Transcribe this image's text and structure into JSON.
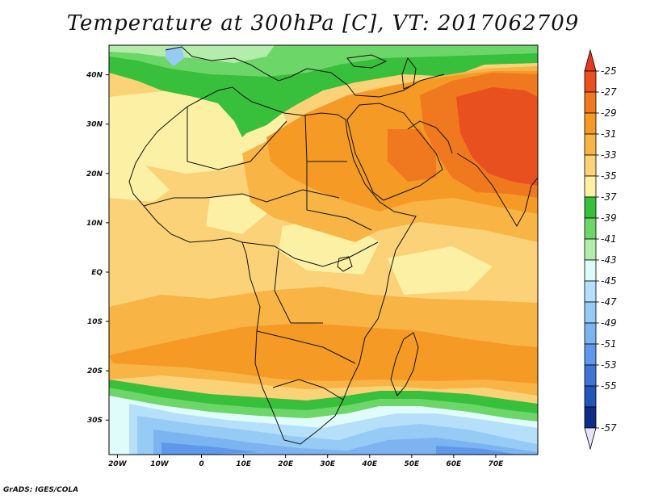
{
  "title": "Temperature at 300hPa [C], VT: 2017062709",
  "credit": "GrADS: IGES/COLA",
  "map": {
    "lon_range": [
      -22,
      80
    ],
    "lat_range": [
      -37,
      46
    ],
    "lat_ticks": [
      {
        "value": 40,
        "label": "40N"
      },
      {
        "value": 30,
        "label": "30N"
      },
      {
        "value": 20,
        "label": "20N"
      },
      {
        "value": 10,
        "label": "10N"
      },
      {
        "value": 0,
        "label": "EQ"
      },
      {
        "value": -10,
        "label": "10S"
      },
      {
        "value": -20,
        "label": "20S"
      },
      {
        "value": -30,
        "label": "30S"
      }
    ],
    "lon_ticks": [
      {
        "value": -20,
        "label": "20W"
      },
      {
        "value": -10,
        "label": "10W"
      },
      {
        "value": 0,
        "label": "0"
      },
      {
        "value": 10,
        "label": "10E"
      },
      {
        "value": 20,
        "label": "20E"
      },
      {
        "value": 30,
        "label": "30E"
      },
      {
        "value": 40,
        "label": "40E"
      },
      {
        "value": 50,
        "label": "50E"
      },
      {
        "value": 60,
        "label": "60E"
      },
      {
        "value": 70,
        "label": "70E"
      }
    ]
  },
  "colorbar": {
    "levels": [
      {
        "label": "-25",
        "color": "#e8501f"
      },
      {
        "label": "-27",
        "color": "#f0781e"
      },
      {
        "label": "-29",
        "color": "#f59a25"
      },
      {
        "label": "-31",
        "color": "#f8b445"
      },
      {
        "label": "-33",
        "color": "#fbd277"
      },
      {
        "label": "-35",
        "color": "#fcf0a4"
      },
      {
        "label": "-37",
        "color": "#38bf3c"
      },
      {
        "label": "-39",
        "color": "#6cd668"
      },
      {
        "label": "-41",
        "color": "#b4ecac"
      },
      {
        "label": "-43",
        "color": "#e0fcfa"
      },
      {
        "label": "-45",
        "color": "#b6e0fa"
      },
      {
        "label": "-47",
        "color": "#96cbf6"
      },
      {
        "label": "-49",
        "color": "#7bb4f0"
      },
      {
        "label": "-51",
        "color": "#5f98ea"
      },
      {
        "label": "-53",
        "color": "#3f74d6"
      },
      {
        "label": "-55",
        "color": "#2354b8"
      },
      {
        "label": "-57",
        "color": "#102d86"
      }
    ],
    "top_arrow_color": "#e8391c",
    "bottom_arrow_color": "#e6e2f8"
  }
}
